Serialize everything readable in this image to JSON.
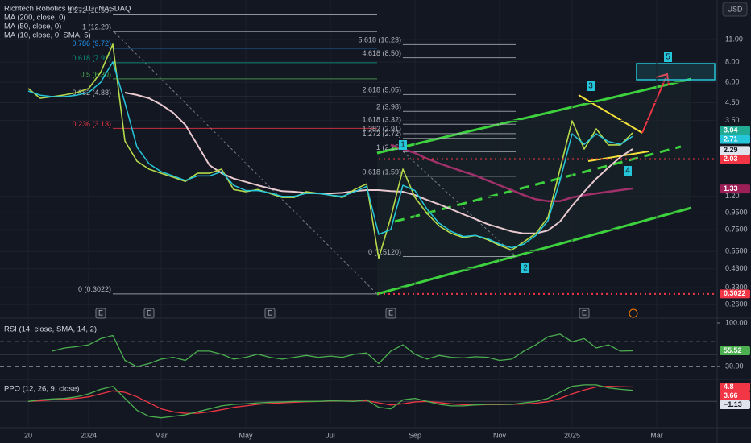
{
  "header": {
    "currency": "USD"
  },
  "chart_data": [
    {
      "type": "line",
      "categories": [
        "20",
        null,
        null,
        null,
        null,
        "2024",
        null,
        null,
        null,
        null,
        null,
        "Mar",
        null,
        null,
        null,
        null,
        null,
        null,
        "May",
        null,
        null,
        null,
        null,
        null,
        null,
        "Jul",
        null,
        null,
        null,
        null,
        null,
        null,
        "Sep",
        null,
        null,
        null,
        null,
        null,
        null,
        "Nov",
        null,
        null,
        null,
        null,
        null,
        "2025",
        null,
        null,
        null,
        null,
        null,
        null,
        "Mar"
      ],
      "series": [
        {
          "name": "Richtech Robotics Inc., 1D, NASDAQ",
          "color": "#b5d94a",
          "values": [
            5.5,
            4.79,
            4.9,
            5.02,
            5.19,
            5.5,
            6.9,
            10.28,
            2.62,
            1.97,
            1.76,
            1.66,
            1.57,
            1.48,
            1.66,
            1.66,
            1.76,
            1.32,
            1.28,
            1.32,
            1.25,
            1.18,
            1.18,
            1.28,
            1.25,
            1.22,
            1.18,
            1.32,
            1.43,
            0.5,
            0.89,
            1.76,
            1.18,
            0.94,
            0.79,
            0.71,
            0.67,
            0.69,
            0.65,
            0.6,
            0.56,
            0.63,
            0.71,
            0.89,
            1.76,
            3.48,
            2.34,
            3.11,
            2.48,
            2.48,
            2.94,
            null,
            null
          ]
        },
        {
          "name": "MA (200, close, 0)",
          "color": "#a0306a",
          "values": [
            null,
            null,
            null,
            null,
            null,
            null,
            null,
            null,
            null,
            null,
            null,
            null,
            null,
            null,
            null,
            null,
            null,
            null,
            null,
            null,
            null,
            null,
            null,
            null,
            null,
            null,
            null,
            null,
            null,
            null,
            2.48,
            2.34,
            2.21,
            2.04,
            1.91,
            1.8,
            1.7,
            1.61,
            1.5,
            1.4,
            1.31,
            1.22,
            1.15,
            1.12,
            1.12,
            1.18,
            1.22,
            1.25,
            1.28,
            1.31,
            1.34,
            null,
            null
          ]
        },
        {
          "name": "MA (50, close, 0)",
          "color": "#e8c9cf",
          "values": [
            null,
            null,
            null,
            null,
            null,
            null,
            null,
            null,
            5.19,
            5.02,
            4.79,
            4.38,
            3.9,
            3.29,
            2.48,
            1.86,
            1.66,
            1.54,
            1.47,
            1.4,
            1.34,
            1.29,
            1.28,
            1.26,
            1.25,
            1.25,
            1.26,
            1.29,
            1.31,
            1.31,
            1.29,
            1.28,
            1.22,
            1.14,
            1.07,
            1.0,
            0.93,
            0.87,
            0.81,
            0.77,
            0.73,
            0.71,
            0.71,
            0.74,
            0.84,
            1.05,
            1.28,
            1.54,
            1.8,
            2.09,
            2.34,
            null,
            null
          ]
        },
        {
          "name": "MA (10, close, 0, SMA, 5)",
          "color": "#26c6da",
          "values": [
            5.3,
            5.0,
            4.9,
            4.9,
            5.0,
            5.2,
            6.0,
            8.0,
            4.5,
            2.4,
            1.9,
            1.7,
            1.6,
            1.5,
            1.6,
            1.6,
            1.7,
            1.4,
            1.3,
            1.3,
            1.26,
            1.2,
            1.2,
            1.25,
            1.25,
            1.22,
            1.2,
            1.28,
            1.38,
            0.7,
            0.75,
            1.4,
            1.3,
            1.0,
            0.82,
            0.73,
            0.68,
            0.69,
            0.66,
            0.61,
            0.58,
            0.61,
            0.69,
            0.85,
            1.5,
            2.9,
            2.5,
            2.9,
            2.6,
            2.5,
            2.8,
            null,
            null
          ]
        }
      ],
      "log_scale": true,
      "grid": true,
      "ylim": [
        0.227,
        19.2
      ],
      "yticks": [
        {
          "value": 11,
          "label": "11.00"
        },
        {
          "value": 8,
          "label": "8.00"
        },
        {
          "value": 6,
          "label": "6.00"
        },
        {
          "value": 4.5,
          "label": "4.50"
        },
        {
          "value": 3.5,
          "label": "3.50"
        },
        {
          "value": 1.2,
          "label": "1.20"
        },
        {
          "value": 0.95,
          "label": "0.9500"
        },
        {
          "value": 0.75,
          "label": "0.7500"
        },
        {
          "value": 0.55,
          "label": "0.5500"
        },
        {
          "value": 0.43,
          "label": "0.4300"
        },
        {
          "value": 0.33,
          "label": "0.3300"
        },
        {
          "value": 0.26,
          "label": "0.2600"
        }
      ],
      "fib_left": [
        {
          "label": "1.272 (15.55)",
          "value": 15.55,
          "color": "#b2b5be"
        },
        {
          "label": "1 (12.29)",
          "value": 12.29,
          "color": "#b2b5be"
        },
        {
          "label": "0.786 (9.72)",
          "value": 9.72,
          "color": "#2196f3"
        },
        {
          "label": "0.618 (7.92)",
          "value": 7.92,
          "color": "#089981"
        },
        {
          "label": "0.5 (6.30)",
          "value": 6.3,
          "color": "#4caf50"
        },
        {
          "label": "0.382 (4.88)",
          "value": 4.88,
          "color": "#b2b5be"
        },
        {
          "label": "0.236 (3.13)",
          "value": 3.13,
          "color": "#f23645"
        },
        {
          "label": "0 (0.3022)",
          "value": 0.3022,
          "color": "#b2b5be"
        }
      ],
      "fib_right": [
        {
          "label": "5.618 (10.23)",
          "value": 10.23,
          "color": "#b2b5be"
        },
        {
          "label": "4.618 (8.50)",
          "value": 8.5,
          "color": "#b2b5be"
        },
        {
          "label": "2.618 (5.05)",
          "value": 5.05,
          "color": "#b2b5be"
        },
        {
          "label": "2 (3.98)",
          "value": 3.98,
          "color": "#b2b5be"
        },
        {
          "label": "1.618 (3.32)",
          "value": 3.32,
          "color": "#b2b5be"
        },
        {
          "label": "1.382 (2.91)",
          "value": 2.91,
          "color": "#b2b5be"
        },
        {
          "label": "1.272 (2.72)",
          "value": 2.72,
          "color": "#b2b5be"
        },
        {
          "label": "1 (2.25)",
          "value": 2.25,
          "color": "#b2b5be"
        },
        {
          "label": "0.618 (1.59)",
          "value": 1.59,
          "color": "#b2b5be"
        },
        {
          "label": "0 (0.5120)",
          "value": 0.512,
          "color": "#b2b5be"
        }
      ],
      "price_tags": [
        {
          "value": 3.04,
          "color": "#22ab94"
        },
        {
          "value": 2.71,
          "color": "#26c6da"
        },
        {
          "value": 2.29,
          "color": "#e0e3eb"
        },
        {
          "value": 2.03,
          "color": "#f23645",
          "dotted": true
        },
        {
          "value": 1.33,
          "color": "#9c1f57"
        },
        {
          "value": 0.3022,
          "color": "#f23645",
          "dotted": true
        }
      ],
      "wave_labels": [
        "1",
        "2",
        "3",
        "4",
        "5"
      ],
      "events": [
        {
          "label": "E",
          "index": 6
        },
        {
          "label": "E",
          "index": 10
        },
        {
          "label": "E",
          "index": 20
        },
        {
          "label": "E",
          "index": 30
        },
        {
          "label": "E",
          "index": 46
        }
      ]
    },
    {
      "type": "line",
      "title": "RSI (14, close, SMA, 14, 2)",
      "series": [
        {
          "color": "#4caf50",
          "values": [
            null,
            null,
            55,
            60,
            62,
            65,
            75,
            80,
            40,
            30,
            35,
            42,
            45,
            40,
            55,
            55,
            50,
            42,
            45,
            50,
            45,
            42,
            45,
            48,
            45,
            47,
            45,
            50,
            52,
            35,
            55,
            65,
            50,
            42,
            48,
            45,
            44,
            46,
            45,
            40,
            42,
            55,
            65,
            78,
            82,
            70,
            75,
            60,
            65,
            55,
            55.52,
            null,
            null
          ]
        }
      ],
      "ylim": [
        20,
        100
      ],
      "yticks": [
        {
          "value": 100,
          "label": "100.00"
        },
        {
          "value": 30,
          "label": "30.00"
        }
      ],
      "bands": [
        70,
        30
      ],
      "midline": 50,
      "value_tags": [
        {
          "value": 55.52,
          "color": "#4caf50"
        }
      ]
    },
    {
      "type": "line",
      "title": "PPO (12, 26, 9, close)",
      "series": [
        {
          "color": "#4caf50",
          "values": [
            0,
            0.5,
            0.8,
            1,
            1.5,
            2.5,
            4,
            5,
            1,
            -3,
            -5,
            -5.5,
            -5,
            -4.5,
            -3.5,
            -2.5,
            -1.5,
            -1,
            -0.8,
            -0.5,
            -0.3,
            -0.2,
            0,
            0,
            0,
            0.2,
            0.1,
            0,
            0.5,
            -2,
            -2.5,
            0.5,
            1,
            0,
            -1,
            -1.5,
            -1.5,
            -1.2,
            -1,
            -1,
            -1,
            -0.5,
            0,
            1,
            3,
            5,
            5.5,
            5.5,
            4.5,
            4,
            3.66,
            null,
            null
          ]
        },
        {
          "color": "#f23645",
          "values": [
            0,
            0.2,
            0.5,
            0.7,
            1,
            1.5,
            2.5,
            3.5,
            3,
            1.5,
            -0.5,
            -2.5,
            -3.5,
            -4,
            -4,
            -3.5,
            -2.8,
            -2,
            -1.5,
            -1,
            -0.7,
            -0.5,
            -0.3,
            -0.1,
            0,
            0.1,
            0.1,
            0.1,
            0.2,
            -0.5,
            -1.2,
            -0.8,
            -0.2,
            0,
            -0.4,
            -0.8,
            -1.1,
            -1.2,
            -1.1,
            -1.1,
            -1,
            -0.9,
            -0.6,
            -0.1,
            1,
            2.5,
            3.8,
            4.8,
            5,
            4.9,
            4.8,
            null,
            null
          ]
        }
      ],
      "ylim": [
        -8,
        6
      ],
      "value_tags": [
        {
          "value": 4.8,
          "color": "#f23645"
        },
        {
          "value": 3.66,
          "color": "#f23645"
        },
        {
          "value": -1.13,
          "label": "−1.13",
          "color": "#e0e3eb"
        }
      ]
    }
  ]
}
